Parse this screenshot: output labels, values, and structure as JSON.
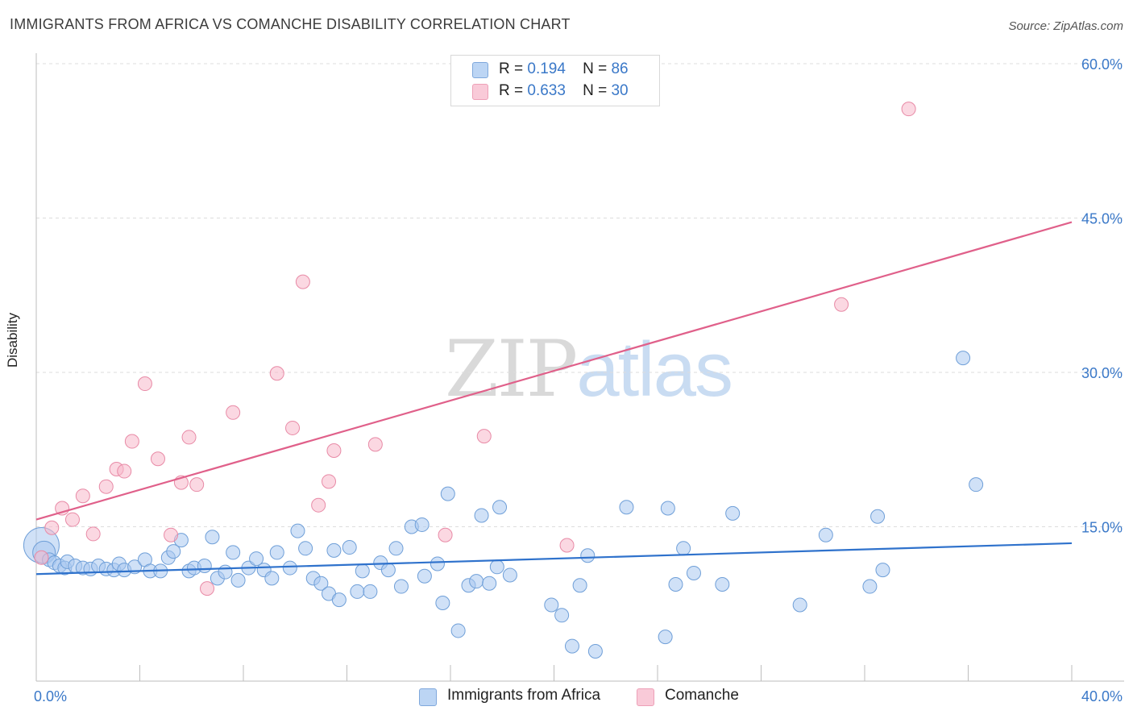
{
  "header": {
    "title": "IMMIGRANTS FROM AFRICA VS COMANCHE DISABILITY CORRELATION CHART",
    "source": "Source: ZipAtlas.com"
  },
  "watermark": {
    "zip": "ZIP",
    "atlas": "atlas"
  },
  "legend": {
    "rows": [
      {
        "r_label": "R =",
        "r_value": "0.194",
        "n_label": "N =",
        "n_value": "86"
      },
      {
        "r_label": "R =",
        "r_value": "0.633",
        "n_label": "N =",
        "n_value": "30"
      }
    ]
  },
  "bottom_legend": {
    "series_a": "Immigrants from Africa",
    "series_b": "Comanche"
  },
  "colors": {
    "series_a_fill": "#a9c8f0",
    "series_a_stroke": "#6f9fd8",
    "series_a_line": "#2f72cc",
    "series_b_fill": "#f7b8cb",
    "series_b_stroke": "#e88aa6",
    "series_b_line": "#e0608a",
    "axis_text": "#3a78c8",
    "grid": "#dddddd"
  },
  "chart_data": {
    "type": "scatter",
    "title": "IMMIGRANTS FROM AFRICA VS COMANCHE DISABILITY CORRELATION CHART",
    "xlabel": "",
    "ylabel": "Disability",
    "xlim": [
      0,
      40
    ],
    "ylim": [
      0,
      60
    ],
    "x_tick_labels": [
      "0.0%",
      "40.0%"
    ],
    "y_tick_labels": [
      "15.0%",
      "30.0%",
      "45.0%",
      "60.0%"
    ],
    "y_ticks": [
      15,
      30,
      45,
      60
    ],
    "grid": true,
    "legend_position": "top-center",
    "series": [
      {
        "name": "Immigrants from Africa",
        "r": 0.194,
        "n": 86,
        "trend": {
          "x": [
            0,
            40
          ],
          "y": [
            10.4,
            13.4
          ]
        },
        "points": [
          [
            0.2,
            13.2
          ],
          [
            0.3,
            12.5
          ],
          [
            0.5,
            11.8
          ],
          [
            0.7,
            11.5
          ],
          [
            0.9,
            11.2
          ],
          [
            1.1,
            11.0
          ],
          [
            1.2,
            11.6
          ],
          [
            1.5,
            11.2
          ],
          [
            1.8,
            11.0
          ],
          [
            2.1,
            10.9
          ],
          [
            2.4,
            11.2
          ],
          [
            2.7,
            10.9
          ],
          [
            3.0,
            10.8
          ],
          [
            3.2,
            11.4
          ],
          [
            3.4,
            10.8
          ],
          [
            3.8,
            11.1
          ],
          [
            4.2,
            11.8
          ],
          [
            4.4,
            10.7
          ],
          [
            4.8,
            10.7
          ],
          [
            5.1,
            12.0
          ],
          [
            5.3,
            12.6
          ],
          [
            5.6,
            13.7
          ],
          [
            5.9,
            10.7
          ],
          [
            6.1,
            11.0
          ],
          [
            6.5,
            11.2
          ],
          [
            6.8,
            14.0
          ],
          [
            7.0,
            10.0
          ],
          [
            7.3,
            10.6
          ],
          [
            7.6,
            12.5
          ],
          [
            7.8,
            9.8
          ],
          [
            8.2,
            11.0
          ],
          [
            8.5,
            11.9
          ],
          [
            8.8,
            10.8
          ],
          [
            9.1,
            10.0
          ],
          [
            9.3,
            12.5
          ],
          [
            9.8,
            11.0
          ],
          [
            10.1,
            14.6
          ],
          [
            10.4,
            12.9
          ],
          [
            10.7,
            10.0
          ],
          [
            11.0,
            9.5
          ],
          [
            11.3,
            8.5
          ],
          [
            11.5,
            12.7
          ],
          [
            11.7,
            7.9
          ],
          [
            12.1,
            13.0
          ],
          [
            12.4,
            8.7
          ],
          [
            12.6,
            10.7
          ],
          [
            12.9,
            8.7
          ],
          [
            13.3,
            11.5
          ],
          [
            13.6,
            10.8
          ],
          [
            13.9,
            12.9
          ],
          [
            14.1,
            9.2
          ],
          [
            14.5,
            15.0
          ],
          [
            14.9,
            15.2
          ],
          [
            15.0,
            10.2
          ],
          [
            15.5,
            11.4
          ],
          [
            15.7,
            7.6
          ],
          [
            15.9,
            18.2
          ],
          [
            16.3,
            4.9
          ],
          [
            16.7,
            9.3
          ],
          [
            17.0,
            9.7
          ],
          [
            17.2,
            16.1
          ],
          [
            17.5,
            9.5
          ],
          [
            17.8,
            11.1
          ],
          [
            17.9,
            16.9
          ],
          [
            18.3,
            10.3
          ],
          [
            19.9,
            7.4
          ],
          [
            20.3,
            6.4
          ],
          [
            20.7,
            3.4
          ],
          [
            21.0,
            9.3
          ],
          [
            21.3,
            12.2
          ],
          [
            21.6,
            2.9
          ],
          [
            22.8,
            16.9
          ],
          [
            24.3,
            4.3
          ],
          [
            24.4,
            16.8
          ],
          [
            24.7,
            9.4
          ],
          [
            25.0,
            12.9
          ],
          [
            25.4,
            10.5
          ],
          [
            26.5,
            9.4
          ],
          [
            26.9,
            16.3
          ],
          [
            29.5,
            7.4
          ],
          [
            30.5,
            14.2
          ],
          [
            32.2,
            9.2
          ],
          [
            32.5,
            16.0
          ],
          [
            32.7,
            10.8
          ],
          [
            35.8,
            31.4
          ],
          [
            36.3,
            19.1
          ]
        ]
      },
      {
        "name": "Comanche",
        "r": 0.633,
        "n": 30,
        "trend": {
          "x": [
            0,
            40
          ],
          "y": [
            15.7,
            44.6
          ]
        },
        "points": [
          [
            0.2,
            12.0
          ],
          [
            0.6,
            14.9
          ],
          [
            1.0,
            16.8
          ],
          [
            1.4,
            15.7
          ],
          [
            1.8,
            18.0
          ],
          [
            2.2,
            14.3
          ],
          [
            2.7,
            18.9
          ],
          [
            3.1,
            20.6
          ],
          [
            3.4,
            20.4
          ],
          [
            3.7,
            23.3
          ],
          [
            4.2,
            28.9
          ],
          [
            4.7,
            21.6
          ],
          [
            5.2,
            14.2
          ],
          [
            5.6,
            19.3
          ],
          [
            5.9,
            23.7
          ],
          [
            6.2,
            19.1
          ],
          [
            6.6,
            9.0
          ],
          [
            7.6,
            26.1
          ],
          [
            9.3,
            29.9
          ],
          [
            9.9,
            24.6
          ],
          [
            10.3,
            38.8
          ],
          [
            10.9,
            17.1
          ],
          [
            11.3,
            19.4
          ],
          [
            11.5,
            22.4
          ],
          [
            13.1,
            23.0
          ],
          [
            15.8,
            14.2
          ],
          [
            17.3,
            23.8
          ],
          [
            20.5,
            13.2
          ],
          [
            31.1,
            36.6
          ],
          [
            33.7,
            55.6
          ]
        ]
      }
    ]
  }
}
